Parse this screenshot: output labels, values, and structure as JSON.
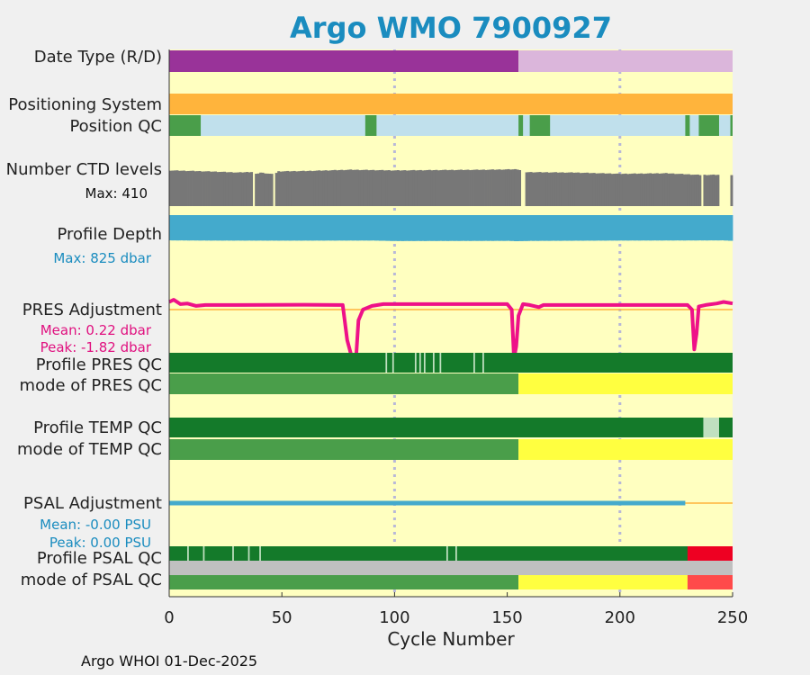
{
  "title": "Argo WMO 7900927",
  "footer": "Argo WHOI 01-Dec-2025",
  "chart_data": {
    "type": "table",
    "xlabel": "Cycle Number",
    "xlim": [
      0,
      250
    ],
    "xticks": [
      0,
      50,
      100,
      150,
      200,
      250
    ],
    "vgrid_at": [
      100,
      200
    ],
    "colors": {
      "background": "#ffffc0",
      "date_R": "#993399",
      "date_D": "#dbb6db",
      "positioning": "#ffb43c",
      "qc_good": "#4a9e4a",
      "qc_dark": "#147a2a",
      "qc_light": "#c0e0c0",
      "pos_other": "#c0e0ec",
      "ctd": "#777777",
      "depth": "#44aacc",
      "pres_adj": "#ee1188",
      "psal_adj": "#44aacc",
      "zero_line": "#ffb43c",
      "mode_D": "#ffff40",
      "psal_bad": "#ee0022",
      "psal_bad_mode": "#ff4a4a",
      "psal_gray": "#c0c0c0"
    },
    "rows": {
      "date_type": {
        "label": "Date Type (R/D)",
        "segments": [
          {
            "from": 0,
            "to": 155,
            "value": "R"
          },
          {
            "from": 155,
            "to": 250,
            "value": "D"
          }
        ]
      },
      "positioning": {
        "label": "Positioning System",
        "segments": [
          {
            "from": 0,
            "to": 250,
            "value": "GPS"
          }
        ]
      },
      "position_qc": {
        "label": "Position QC",
        "good_cycles": [
          [
            0,
            14
          ],
          [
            87,
            92
          ],
          [
            155,
            157
          ],
          [
            160,
            169
          ],
          [
            229,
            231
          ],
          [
            235,
            244
          ],
          [
            249,
            250
          ]
        ]
      },
      "ctd_levels": {
        "label": "Number CTD levels",
        "max_label": "Max: 410",
        "max": 410,
        "gaps": [
          [
            37,
            38
          ],
          [
            46,
            47
          ],
          [
            236,
            237
          ],
          [
            156,
            158
          ],
          [
            244,
            249
          ]
        ],
        "values": [
          [
            0,
            378
          ],
          [
            10,
            372
          ],
          [
            20,
            365
          ],
          [
            30,
            356
          ],
          [
            36,
            362
          ],
          [
            38,
            340
          ],
          [
            40,
            355
          ],
          [
            46,
            336
          ],
          [
            48,
            368
          ],
          [
            60,
            372
          ],
          [
            80,
            385
          ],
          [
            100,
            378
          ],
          [
            120,
            382
          ],
          [
            140,
            385
          ],
          [
            154,
            390
          ],
          [
            158,
            360
          ],
          [
            180,
            355
          ],
          [
            200,
            342
          ],
          [
            220,
            348
          ],
          [
            235,
            330
          ],
          [
            244,
            332
          ],
          [
            250,
            330
          ]
        ]
      },
      "profile_depth": {
        "label": "Profile Depth",
        "max_label": "Max:  825 dbar",
        "values": [
          [
            0,
            800
          ],
          [
            20,
            806
          ],
          [
            50,
            808
          ],
          [
            90,
            805
          ],
          [
            100,
            820
          ],
          [
            150,
            815
          ],
          [
            154,
            825
          ],
          [
            160,
            816
          ],
          [
            200,
            805
          ],
          [
            230,
            802
          ],
          [
            245,
            800
          ],
          [
            250,
            815
          ]
        ]
      },
      "pres_adjustment": {
        "label": "PRES Adjustment",
        "mean_label": "Mean: 0.22 dbar",
        "peak_label": "Peak: -1.82 dbar",
        "values": [
          [
            0,
            0.25
          ],
          [
            2,
            0.32
          ],
          [
            5,
            0.18
          ],
          [
            8,
            0.2
          ],
          [
            12,
            0.12
          ],
          [
            16,
            0.15
          ],
          [
            30,
            0.15
          ],
          [
            60,
            0.16
          ],
          [
            75,
            0.15
          ],
          [
            77,
            0.15
          ],
          [
            79,
            -1.0
          ],
          [
            82,
            -1.82
          ],
          [
            83,
            -1.5
          ],
          [
            84,
            -0.35
          ],
          [
            86,
            0.0
          ],
          [
            90,
            0.12
          ],
          [
            95,
            0.18
          ],
          [
            120,
            0.18
          ],
          [
            150,
            0.18
          ],
          [
            152,
            0.0
          ],
          [
            153,
            -1.6
          ],
          [
            154,
            -1.2
          ],
          [
            155,
            -0.2
          ],
          [
            157,
            0.18
          ],
          [
            160,
            0.15
          ],
          [
            164,
            0.08
          ],
          [
            166,
            0.15
          ],
          [
            200,
            0.15
          ],
          [
            230,
            0.15
          ],
          [
            232,
            0.0
          ],
          [
            233,
            -1.3
          ],
          [
            234,
            -0.8
          ],
          [
            235,
            0.1
          ],
          [
            238,
            0.15
          ],
          [
            243,
            0.2
          ],
          [
            246,
            0.25
          ],
          [
            250,
            0.2
          ]
        ]
      },
      "profile_pres_qc": {
        "label": "Profile PRES QC",
        "light_ticks": [
          96,
          99,
          109,
          111,
          113,
          117,
          120,
          135,
          139
        ]
      },
      "mode_pres_qc": {
        "label": "mode of PRES QC",
        "segments": [
          {
            "from": 0,
            "to": 155,
            "value": "R"
          },
          {
            "from": 155,
            "to": 250,
            "value": "D"
          }
        ]
      },
      "profile_temp_qc": {
        "label": "Profile TEMP QC",
        "light_segments": [
          [
            237,
            244
          ]
        ]
      },
      "mode_temp_qc": {
        "label": "mode of TEMP QC",
        "segments": [
          {
            "from": 0,
            "to": 155,
            "value": "R"
          },
          {
            "from": 155,
            "to": 250,
            "value": "D"
          }
        ]
      },
      "psal_adjustment": {
        "label": "PSAL Adjustment",
        "mean_label": "Mean: -0.00 PSU",
        "peak_label": "Peak: 0.00 PSU",
        "values": [
          [
            0,
            0.0
          ],
          [
            229,
            0.0
          ]
        ]
      },
      "profile_psal_qc": {
        "label": "Profile PSAL QC",
        "light_ticks": [
          8,
          15,
          28,
          35,
          40,
          123,
          127
        ],
        "bad_segment": [
          230,
          250
        ]
      },
      "mode_psal_qc": {
        "label": "mode of PSAL QC",
        "segments": [
          {
            "from": 0,
            "to": 155,
            "value": "R"
          },
          {
            "from": 155,
            "to": 230,
            "value": "D"
          },
          {
            "from": 230,
            "to": 250,
            "value": "bad"
          }
        ]
      }
    }
  }
}
